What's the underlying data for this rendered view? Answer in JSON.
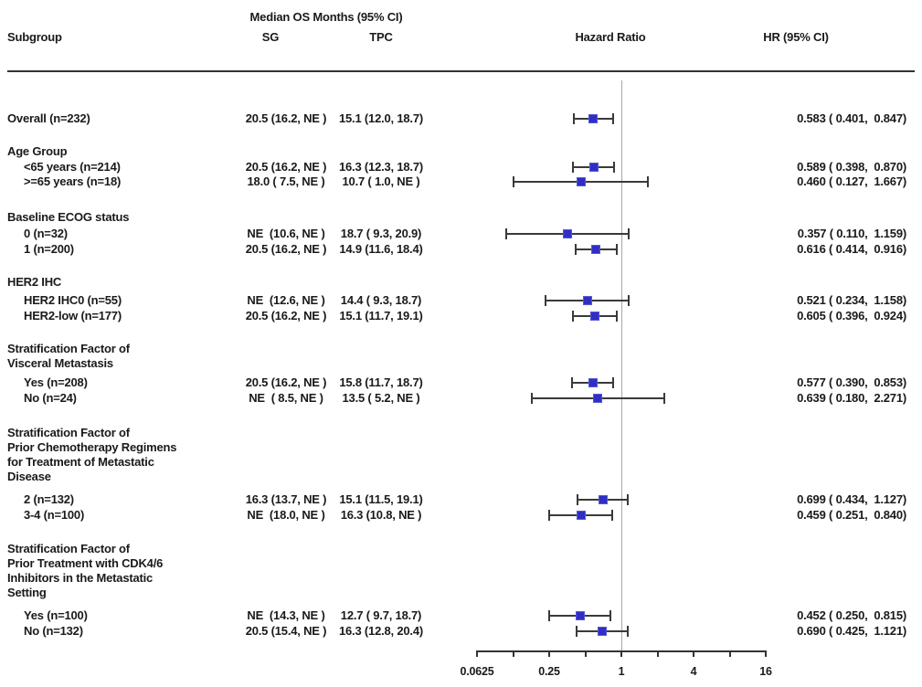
{
  "header": {
    "median_os_label": "Median OS Months (95% CI)",
    "subgroup": "Subgroup",
    "sg": "SG",
    "tpc": "TPC",
    "hazard_ratio": "Hazard Ratio",
    "hr_ci": "HR (95% CI)"
  },
  "colors": {
    "marker": "#2f2fc4",
    "marker_edge": "#5757d8",
    "whisker": "#3a3a3a",
    "ref_line": "#a8a8a8",
    "rule": "#333333",
    "text": "#1a1a1a"
  },
  "chart_data": {
    "type": "forest",
    "x_scale": "log2",
    "xlim": [
      0.0625,
      16
    ],
    "ref_line": 1,
    "x_ticks": [
      0.0625,
      0.125,
      0.25,
      0.5,
      1,
      2,
      4,
      8,
      16
    ],
    "x_tick_labels": [
      "0.0625",
      "",
      "0.25",
      "",
      "1",
      "",
      "4",
      "",
      "16"
    ],
    "rows": [
      {
        "type": "data",
        "indent": false,
        "label": "Overall (n=232)",
        "sg": "20.5 (16.2, NE )",
        "tpc": "15.1 (12.0, 18.7)",
        "hr": 0.583,
        "lo": 0.401,
        "hi": 0.847,
        "hr_text": "0.583 ( 0.401,  0.847)"
      },
      {
        "type": "section",
        "lines": [
          "Age Group"
        ]
      },
      {
        "type": "data",
        "indent": true,
        "label": "<65 years (n=214)",
        "sg": "20.5 (16.2, NE )",
        "tpc": "16.3 (12.3, 18.7)",
        "hr": 0.589,
        "lo": 0.398,
        "hi": 0.87,
        "hr_text": "0.589 ( 0.398,  0.870)"
      },
      {
        "type": "data",
        "indent": true,
        "label": ">=65 years (n=18)",
        "sg": "18.0 ( 7.5, NE )",
        "tpc": "10.7 ( 1.0, NE )",
        "hr": 0.46,
        "lo": 0.127,
        "hi": 1.667,
        "hr_text": "0.460 ( 0.127,  1.667)"
      },
      {
        "type": "section",
        "lines": [
          "Baseline ECOG status"
        ]
      },
      {
        "type": "data",
        "indent": true,
        "label": "0 (n=32)",
        "sg": "NE  (10.6, NE )",
        "tpc": "18.7 ( 9.3, 20.9)",
        "hr": 0.357,
        "lo": 0.11,
        "hi": 1.159,
        "hr_text": "0.357 ( 0.110,  1.159)"
      },
      {
        "type": "data",
        "indent": true,
        "label": "1 (n=200)",
        "sg": "20.5 (16.2, NE )",
        "tpc": "14.9 (11.6, 18.4)",
        "hr": 0.616,
        "lo": 0.414,
        "hi": 0.916,
        "hr_text": "0.616 ( 0.414,  0.916)"
      },
      {
        "type": "section",
        "lines": [
          "HER2 IHC"
        ]
      },
      {
        "type": "data",
        "indent": true,
        "label": "HER2 IHC0 (n=55)",
        "sg": "NE  (12.6, NE )",
        "tpc": "14.4 ( 9.3, 18.7)",
        "hr": 0.521,
        "lo": 0.234,
        "hi": 1.158,
        "hr_text": "0.521 ( 0.234,  1.158)"
      },
      {
        "type": "data",
        "indent": true,
        "label": "HER2-low (n=177)",
        "sg": "20.5 (16.2, NE )",
        "tpc": "15.1 (11.7, 19.1)",
        "hr": 0.605,
        "lo": 0.396,
        "hi": 0.924,
        "hr_text": "0.605 ( 0.396,  0.924)"
      },
      {
        "type": "section",
        "lines": [
          "Stratification Factor of",
          "Visceral Metastasis"
        ]
      },
      {
        "type": "data",
        "indent": true,
        "label": "Yes (n=208)",
        "sg": "20.5 (16.2, NE )",
        "tpc": "15.8 (11.7, 18.7)",
        "hr": 0.577,
        "lo": 0.39,
        "hi": 0.853,
        "hr_text": "0.577 ( 0.390,  0.853)"
      },
      {
        "type": "data",
        "indent": true,
        "label": "No (n=24)",
        "sg": "NE  ( 8.5, NE )",
        "tpc": "13.5 ( 5.2, NE )",
        "hr": 0.639,
        "lo": 0.18,
        "hi": 2.271,
        "hr_text": "0.639 ( 0.180,  2.271)"
      },
      {
        "type": "section",
        "lines": [
          "Stratification Factor of",
          "Prior Chemotherapy Regimens",
          "for Treatment of Metastatic",
          "Disease"
        ]
      },
      {
        "type": "data",
        "indent": true,
        "label": "2 (n=132)",
        "sg": "16.3 (13.7, NE )",
        "tpc": "15.1 (11.5, 19.1)",
        "hr": 0.699,
        "lo": 0.434,
        "hi": 1.127,
        "hr_text": "0.699 ( 0.434,  1.127)"
      },
      {
        "type": "data",
        "indent": true,
        "label": "3-4 (n=100)",
        "sg": "NE  (18.0, NE )",
        "tpc": "16.3 (10.8, NE )",
        "hr": 0.459,
        "lo": 0.251,
        "hi": 0.84,
        "hr_text": "0.459 ( 0.251,  0.840)"
      },
      {
        "type": "section",
        "lines": [
          "Stratification Factor of",
          "Prior Treatment with CDK4/6",
          "Inhibitors in the Metastatic",
          "Setting"
        ]
      },
      {
        "type": "data",
        "indent": true,
        "label": "Yes (n=100)",
        "sg": "NE  (14.3, NE )",
        "tpc": "12.7 ( 9.7, 18.7)",
        "hr": 0.452,
        "lo": 0.25,
        "hi": 0.815,
        "hr_text": "0.452 ( 0.250,  0.815)"
      },
      {
        "type": "data",
        "indent": true,
        "label": "No (n=132)",
        "sg": "20.5 (15.4, NE )",
        "tpc": "16.3 (12.8, 20.4)",
        "hr": 0.69,
        "lo": 0.425,
        "hi": 1.121,
        "hr_text": "0.690 ( 0.425,  1.121)"
      }
    ]
  }
}
